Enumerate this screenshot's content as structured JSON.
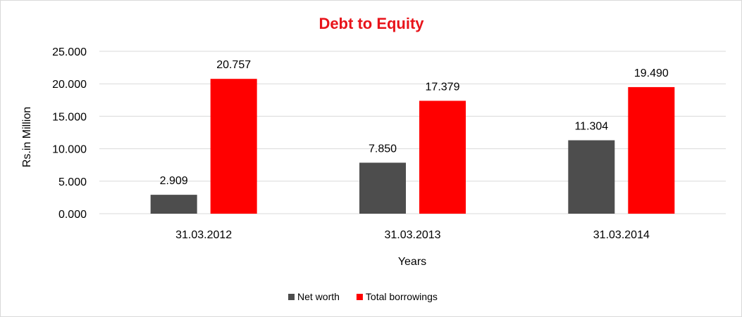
{
  "chart_data": {
    "type": "bar",
    "title": "Debt to Equity",
    "xlabel": "Years",
    "ylabel": "Rs.in Million",
    "categories": [
      "31.03.2012",
      "31.03.2013",
      "31.03.2014"
    ],
    "series": [
      {
        "name": "Net worth",
        "values": [
          2.909,
          7.85,
          11.304
        ],
        "labels": [
          "2.909",
          "7.850",
          "11.304"
        ],
        "color": "#4d4d4d"
      },
      {
        "name": "Total borrowings",
        "values": [
          20.757,
          17.379,
          19.49
        ],
        "labels": [
          "20.757",
          "17.379",
          "19.490"
        ],
        "color": "#ff0000"
      }
    ],
    "ylim": [
      0,
      25
    ],
    "yticks": [
      "0.000",
      "5.000",
      "10.000",
      "15.000",
      "20.000",
      "25.000"
    ],
    "grid": true,
    "legend_position": "bottom",
    "title_color": "#e8141b"
  }
}
